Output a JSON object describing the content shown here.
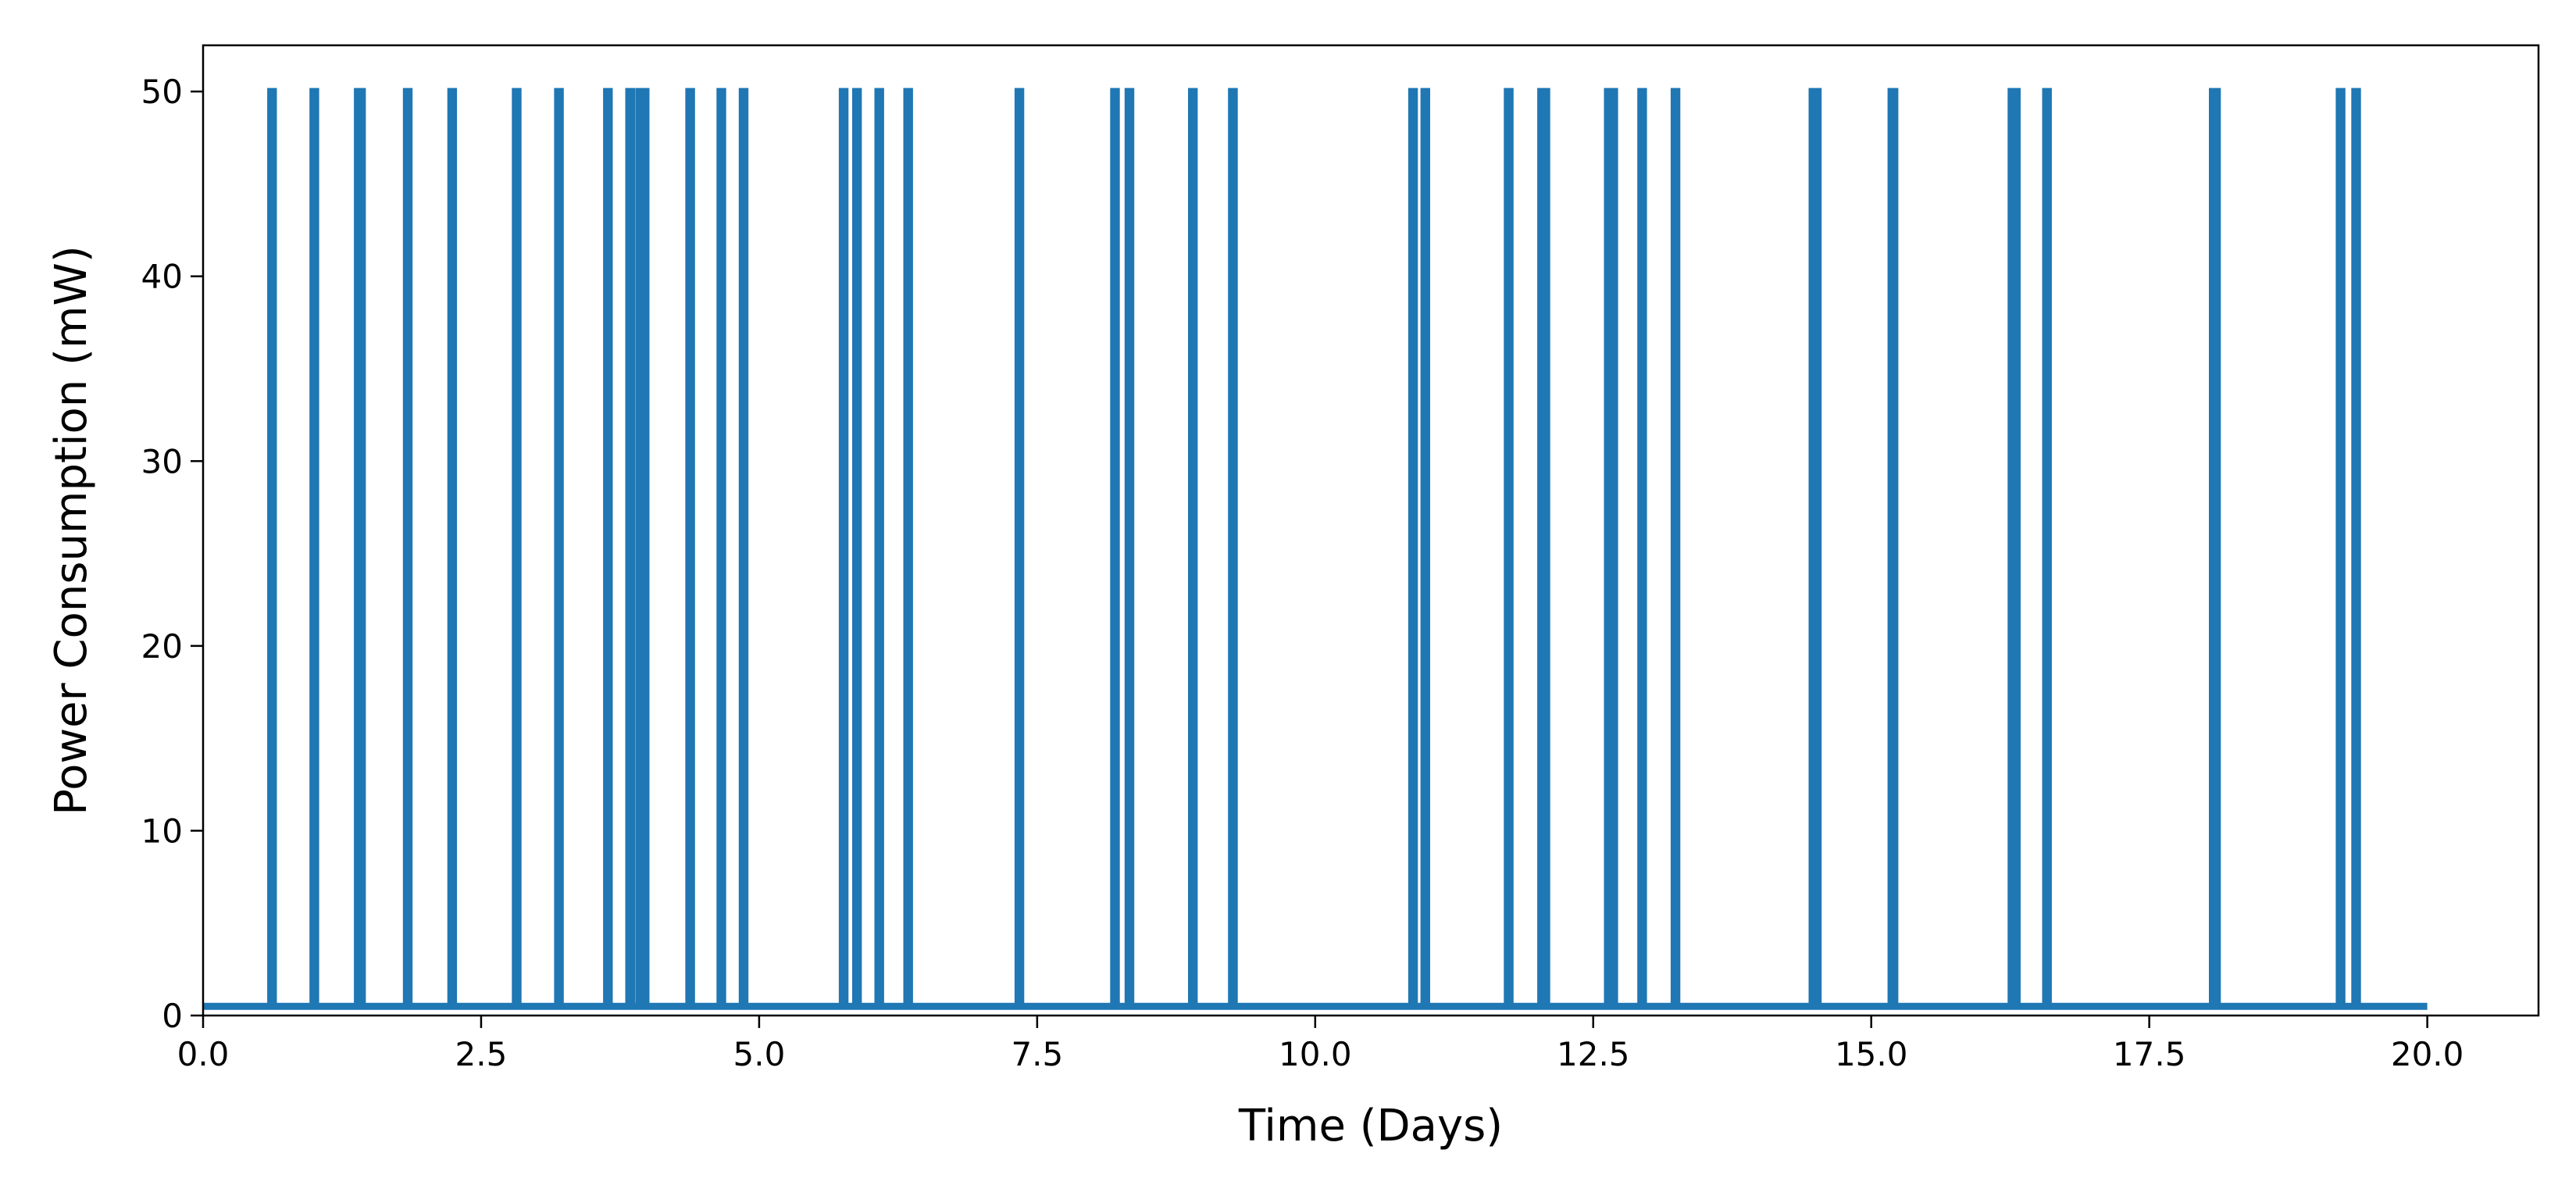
{
  "chart_data": {
    "type": "line",
    "title": "",
    "xlabel": "Time (Days)",
    "ylabel": "Power Consumption (mW)",
    "xlim": [
      0,
      21
    ],
    "ylim": [
      0,
      52.5
    ],
    "x_ticks": [
      0.0,
      2.5,
      5.0,
      7.5,
      10.0,
      12.5,
      15.0,
      17.5,
      20.0
    ],
    "x_tick_labels": [
      "0.0",
      "2.5",
      "5.0",
      "7.5",
      "10.0",
      "12.5",
      "15.0",
      "17.5",
      "20.0"
    ],
    "y_ticks": [
      0,
      10,
      20,
      30,
      40,
      50
    ],
    "y_tick_labels": [
      "0",
      "10",
      "20",
      "30",
      "40",
      "50"
    ],
    "grid": false,
    "legend": "none",
    "series": [
      {
        "color": "#1f77b4",
        "baseline_value": 0.5,
        "peak_value": 50,
        "x_start": 0,
        "x_end": 20,
        "spike_times": [
          0.62,
          1.0,
          1.4,
          1.42,
          1.84,
          2.24,
          2.82,
          3.2,
          3.64,
          3.84,
          3.93,
          3.97,
          4.38,
          4.66,
          4.86,
          5.76,
          5.88,
          6.08,
          6.34,
          7.34,
          8.2,
          8.33,
          8.9,
          9.26,
          10.88,
          10.99,
          11.74,
          12.04,
          12.07,
          12.64,
          12.68,
          12.94,
          13.24,
          14.48,
          14.51,
          15.19,
          15.2,
          16.27,
          16.3,
          16.58,
          18.08,
          18.1,
          19.22,
          19.36
        ]
      }
    ]
  }
}
